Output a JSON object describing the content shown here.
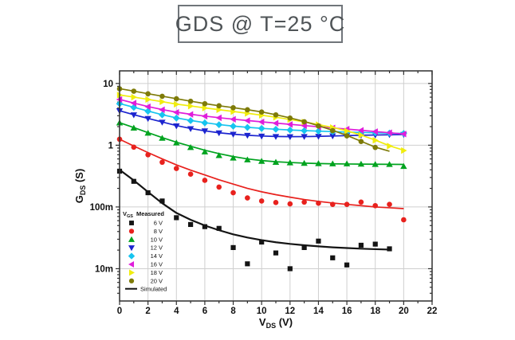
{
  "title": "GDS @ T=25 °C",
  "chart_data": {
    "type": "scatter+line",
    "title": "GDS @ T=25 °C",
    "xlabel": {
      "main": "V",
      "sub": "DS",
      "rest": " (V)"
    },
    "ylabel": {
      "main": "G",
      "sub": "DS",
      "rest": " (S)"
    },
    "x_axis": {
      "lim": [
        0,
        22
      ],
      "major_ticks": [
        0,
        2,
        4,
        6,
        8,
        10,
        12,
        14,
        16,
        18,
        20,
        22
      ],
      "minor_ticks": [
        1,
        3,
        5,
        7,
        9,
        11,
        13,
        15,
        17,
        19,
        21
      ],
      "tick_labels": [
        "0",
        "2",
        "4",
        "6",
        "8",
        "10",
        "12",
        "14",
        "16",
        "18",
        "20",
        "22"
      ]
    },
    "y_axis": {
      "scale": "log",
      "lim": [
        0.003,
        16
      ],
      "major_ticks": [
        {
          "value": 10,
          "label": "10"
        },
        {
          "value": 1,
          "label": "1"
        },
        {
          "value": 0.1,
          "label": "100m"
        },
        {
          "value": 0.01,
          "label": "10m"
        }
      ]
    },
    "grid": {
      "x_values": [
        2,
        4,
        6,
        8,
        10,
        12,
        14,
        16,
        18,
        20
      ],
      "y_values": [
        10,
        1,
        0.1,
        0.01
      ],
      "color": "#cfcfcf"
    },
    "legend": {
      "position": "lower-left",
      "header": {
        "main": "V",
        "sub": "GS",
        "rest": "Measured"
      },
      "simulated_label": "Simulated"
    },
    "series": [
      {
        "vgs": "6 V",
        "color": "#141414",
        "marker": "square",
        "line_width": 2.2,
        "measured": {
          "x": [
            0,
            1,
            2,
            3,
            4,
            5,
            6,
            7,
            8,
            9,
            10,
            11,
            12,
            13,
            14,
            15,
            16,
            17,
            18,
            19
          ],
          "y": [
            0.38,
            0.26,
            0.17,
            0.125,
            0.067,
            0.052,
            0.048,
            0.045,
            0.022,
            0.012,
            0.027,
            0.018,
            0.01,
            0.022,
            0.028,
            0.015,
            0.0115,
            0.024,
            0.025,
            0.021
          ]
        },
        "simulated": {
          "x": [
            0,
            1,
            2,
            3,
            4,
            5,
            6,
            7,
            8,
            9,
            10,
            11,
            12,
            13,
            14,
            15,
            16,
            17,
            18,
            19
          ],
          "y": [
            0.4,
            0.27,
            0.175,
            0.115,
            0.08,
            0.062,
            0.05,
            0.042,
            0.036,
            0.032,
            0.029,
            0.0268,
            0.0252,
            0.024,
            0.023,
            0.0222,
            0.0216,
            0.0211,
            0.0207,
            0.0204
          ]
        }
      },
      {
        "vgs": "8 V",
        "color": "#e8211d",
        "marker": "circle",
        "line_width": 1.7,
        "measured": {
          "x": [
            0,
            1,
            2,
            3,
            4,
            5,
            6,
            7,
            8,
            9,
            10,
            11,
            12,
            13,
            14,
            15,
            16,
            17,
            18,
            19,
            20
          ],
          "y": [
            1.25,
            0.93,
            0.7,
            0.53,
            0.42,
            0.34,
            0.27,
            0.21,
            0.17,
            0.14,
            0.125,
            0.118,
            0.112,
            0.12,
            0.115,
            0.11,
            0.11,
            0.12,
            0.105,
            0.11,
            0.062
          ]
        },
        "simulated": {
          "x": [
            0,
            1,
            2,
            3,
            4,
            5,
            6,
            7,
            8,
            9,
            10,
            11,
            12,
            13,
            14,
            15,
            16,
            17,
            18,
            19,
            20
          ],
          "y": [
            1.25,
            0.97,
            0.76,
            0.6,
            0.48,
            0.395,
            0.33,
            0.275,
            0.235,
            0.2,
            0.176,
            0.158,
            0.144,
            0.132,
            0.123,
            0.116,
            0.11,
            0.105,
            0.1,
            0.097,
            0.094
          ]
        }
      },
      {
        "vgs": "10 V",
        "color": "#00a31f",
        "marker": "triangle-up",
        "line_width": 1.7,
        "measured": {
          "x": [
            0,
            1,
            2,
            3,
            4,
            5,
            6,
            7,
            8,
            9,
            10,
            11,
            12,
            13,
            14,
            15,
            16,
            17,
            18,
            19,
            20
          ],
          "y": [
            2.3,
            1.9,
            1.57,
            1.3,
            1.09,
            0.92,
            0.78,
            0.68,
            0.62,
            0.58,
            0.55,
            0.53,
            0.52,
            0.51,
            0.505,
            0.5,
            0.5,
            0.495,
            0.49,
            0.49,
            0.455
          ]
        },
        "simulated": {
          "x": [
            0,
            1,
            2,
            3,
            4,
            5,
            6,
            7,
            8,
            9,
            10,
            11,
            12,
            13,
            14,
            15,
            16,
            17,
            18,
            19,
            20
          ],
          "y": [
            2.32,
            1.93,
            1.6,
            1.33,
            1.12,
            0.96,
            0.83,
            0.73,
            0.655,
            0.6,
            0.565,
            0.54,
            0.525,
            0.513,
            0.505,
            0.5,
            0.497,
            0.494,
            0.492,
            0.49,
            0.488
          ]
        }
      },
      {
        "vgs": "12 V",
        "color": "#1c24cf",
        "marker": "triangle-down",
        "line_width": 1.7,
        "measured": {
          "x": [
            0,
            1,
            2,
            3,
            4,
            5,
            6,
            7,
            8,
            9,
            10,
            11,
            12,
            13,
            14,
            15,
            16,
            17,
            18,
            19,
            20
          ],
          "y": [
            3.6,
            3.1,
            2.7,
            2.35,
            2.05,
            1.85,
            1.7,
            1.58,
            1.5,
            1.44,
            1.4,
            1.38,
            1.37,
            1.38,
            1.39,
            1.41,
            1.43,
            1.45,
            1.46,
            1.48,
            1.49
          ]
        },
        "simulated": {
          "x": [
            0,
            1,
            2,
            3,
            4,
            5,
            6,
            7,
            8,
            9,
            10,
            11,
            12,
            13,
            14,
            15,
            16,
            17,
            18,
            19,
            20
          ],
          "y": [
            3.62,
            3.12,
            2.72,
            2.38,
            2.08,
            1.87,
            1.71,
            1.59,
            1.51,
            1.45,
            1.41,
            1.385,
            1.375,
            1.378,
            1.39,
            1.41,
            1.43,
            1.448,
            1.462,
            1.478,
            1.49
          ]
        }
      },
      {
        "vgs": "14 V",
        "color": "#17c4ef",
        "marker": "diamond",
        "line_width": 1.7,
        "measured": {
          "x": [
            0,
            1,
            2,
            3,
            4,
            5,
            6,
            7,
            8,
            9,
            10,
            11,
            12,
            13,
            14,
            15,
            16,
            17,
            18,
            19,
            20
          ],
          "y": [
            4.7,
            4.1,
            3.55,
            3.1,
            2.75,
            2.5,
            2.3,
            2.15,
            2.03,
            1.94,
            1.87,
            1.81,
            1.76,
            1.72,
            1.69,
            1.66,
            1.63,
            1.61,
            1.59,
            1.57,
            1.55
          ]
        },
        "simulated": {
          "x": [
            0,
            1,
            2,
            3,
            4,
            5,
            6,
            7,
            8,
            9,
            10,
            11,
            12,
            13,
            14,
            15,
            16,
            17,
            18,
            19,
            20
          ],
          "y": [
            4.72,
            4.12,
            3.58,
            3.12,
            2.77,
            2.52,
            2.32,
            2.16,
            2.04,
            1.95,
            1.875,
            1.815,
            1.765,
            1.725,
            1.69,
            1.66,
            1.633,
            1.61,
            1.59,
            1.57,
            1.552
          ]
        }
      },
      {
        "vgs": "16 V",
        "color": "#e01ddb",
        "marker": "triangle-left",
        "line_width": 1.7,
        "measured": {
          "x": [
            0,
            1,
            2,
            3,
            4,
            5,
            6,
            7,
            8,
            9,
            10,
            11,
            12,
            13,
            14,
            15,
            16,
            17,
            18,
            19,
            20
          ],
          "y": [
            5.5,
            4.8,
            4.2,
            3.75,
            3.4,
            3.15,
            2.95,
            2.78,
            2.63,
            2.5,
            2.38,
            2.27,
            2.17,
            2.07,
            1.98,
            1.9,
            1.82,
            1.74,
            1.66,
            1.59,
            1.52
          ]
        },
        "simulated": {
          "x": [
            0,
            1,
            2,
            3,
            4,
            5,
            6,
            7,
            8,
            9,
            10,
            11,
            12,
            13,
            14,
            15,
            16,
            17,
            18,
            19,
            20
          ],
          "y": [
            5.52,
            4.82,
            4.23,
            3.78,
            3.43,
            3.17,
            2.96,
            2.79,
            2.64,
            2.51,
            2.39,
            2.28,
            2.18,
            2.08,
            1.99,
            1.905,
            1.825,
            1.745,
            1.665,
            1.592,
            1.522
          ]
        }
      },
      {
        "vgs": "18 V",
        "color": "#f0ed0e",
        "marker": "triangle-right",
        "line_width": 1.7,
        "measured": {
          "x": [
            0,
            1,
            2,
            3,
            4,
            5,
            6,
            7,
            8,
            9,
            10,
            11,
            12,
            13,
            14,
            15,
            16,
            17,
            18,
            19,
            20
          ],
          "y": [
            6.5,
            6.0,
            5.5,
            5.05,
            4.6,
            4.3,
            4.0,
            3.75,
            3.5,
            3.28,
            3.05,
            2.83,
            2.6,
            2.38,
            2.15,
            1.93,
            1.7,
            1.45,
            1.2,
            0.97,
            0.82
          ]
        },
        "simulated": {
          "x": [
            0,
            1,
            2,
            3,
            4,
            5,
            6,
            7,
            8,
            9,
            10,
            11,
            12,
            13,
            14,
            15,
            16,
            17,
            18,
            19,
            20
          ],
          "y": [
            6.52,
            6.02,
            5.52,
            5.07,
            4.63,
            4.32,
            4.02,
            3.76,
            3.52,
            3.29,
            3.06,
            2.84,
            2.61,
            2.39,
            2.16,
            1.94,
            1.71,
            1.46,
            1.21,
            0.98,
            0.83
          ]
        }
      },
      {
        "vgs": "20 V",
        "color": "#7e7b08",
        "marker": "circle",
        "line_width": 1.7,
        "measured": {
          "x": [
            0,
            1,
            2,
            3,
            4,
            5,
            6,
            7,
            8,
            9,
            10,
            11,
            12,
            13,
            14,
            15,
            16,
            17,
            18
          ],
          "y": [
            8.2,
            7.5,
            6.8,
            6.2,
            5.65,
            5.15,
            4.7,
            4.35,
            4.05,
            3.75,
            3.45,
            3.1,
            2.75,
            2.4,
            2.05,
            1.72,
            1.42,
            1.15,
            0.92
          ]
        },
        "simulated": {
          "x": [
            0,
            1,
            2,
            3,
            4,
            5,
            6,
            7,
            8,
            9,
            10,
            11,
            12,
            13,
            14,
            15,
            16,
            17,
            18,
            19
          ],
          "y": [
            8.25,
            7.52,
            6.82,
            6.22,
            5.67,
            5.17,
            4.72,
            4.36,
            4.06,
            3.76,
            3.46,
            3.12,
            2.77,
            2.42,
            2.07,
            1.74,
            1.44,
            1.16,
            0.93,
            0.8
          ]
        }
      }
    ],
    "style": {
      "axis_color": "#2f2f2f",
      "tick_label_color": "#111111",
      "title_border_color": "#70757a",
      "title_text_color": "#4f5457"
    }
  }
}
